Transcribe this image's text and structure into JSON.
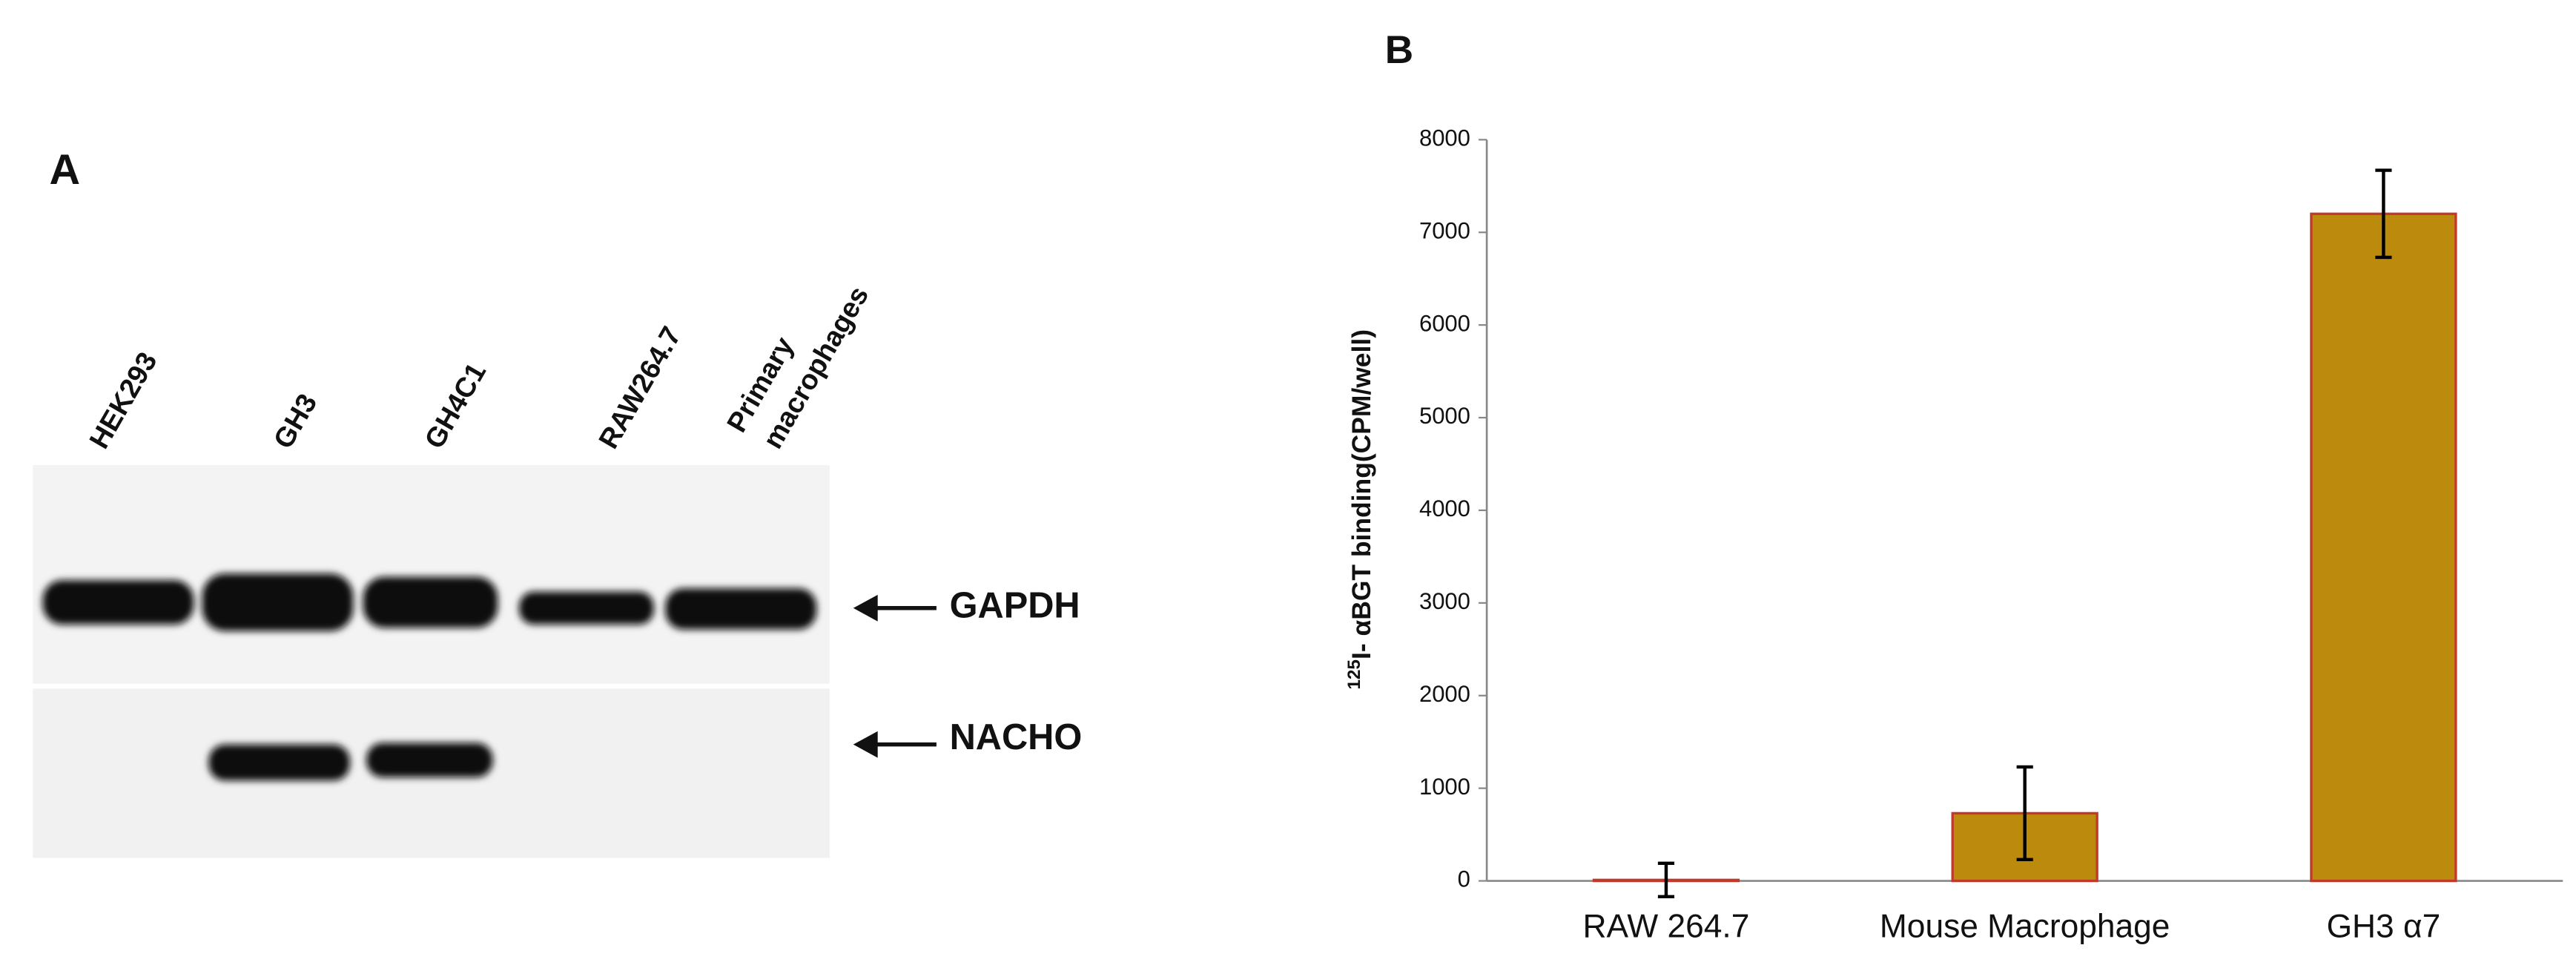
{
  "panel_a": {
    "label": "A",
    "lanes": [
      "HEK293",
      "GH3",
      "GH4C1",
      "RAW264.7",
      [
        "Primary",
        "macrophages"
      ]
    ],
    "bands": [
      "GAPDH",
      "NACHO"
    ]
  },
  "chart_data": {
    "type": "bar",
    "panel_label": "B",
    "ylabel_superscript": "125",
    "ylabel": "I- αBGT binding(CPM/well)",
    "categories": [
      "RAW 264.7",
      "Mouse Macrophage",
      "GH3 α7"
    ],
    "values": [
      10,
      730,
      7200
    ],
    "errors": [
      180,
      500,
      470
    ],
    "color": "#bc8a0c",
    "edge_color": "#c0392b",
    "ylim": [
      0,
      8000
    ],
    "yticks": [
      0,
      1000,
      2000,
      3000,
      4000,
      5000,
      6000,
      7000,
      8000
    ],
    "grid": false
  }
}
